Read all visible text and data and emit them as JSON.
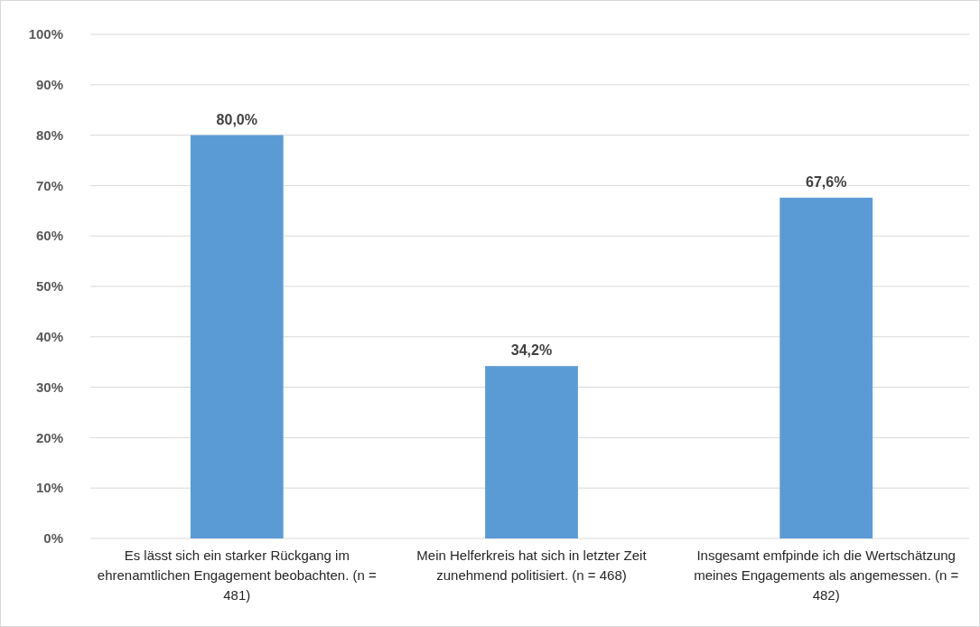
{
  "chart_data": {
    "type": "bar",
    "categories": [
      "Es lässt sich ein starker Rückgang im ehrenamtlichen Engagement beobachten. (n = 481)",
      "Mein Helferkreis hat sich in letzter Zeit zunehmend politisiert. (n = 468)",
      "Insgesamt emfpinde ich die Wertschätzung meines Engagements als angemessen. (n = 482)"
    ],
    "values": [
      80.0,
      34.2,
      67.6
    ],
    "value_labels": [
      "80,0%",
      "34,2%",
      "67,6%"
    ],
    "color": "#5b9bd5",
    "ylim": [
      0,
      100
    ],
    "yticks": [
      {
        "value": 0,
        "label": "0%"
      },
      {
        "value": 10,
        "label": "10%"
      },
      {
        "value": 20,
        "label": "20%"
      },
      {
        "value": 30,
        "label": "30%"
      },
      {
        "value": 40,
        "label": "40%"
      },
      {
        "value": 50,
        "label": "50%"
      },
      {
        "value": 60,
        "label": "60%"
      },
      {
        "value": 70,
        "label": "70%"
      },
      {
        "value": 80,
        "label": "80%"
      },
      {
        "value": 90,
        "label": "90%"
      },
      {
        "value": 100,
        "label": "100%"
      }
    ],
    "grid": "y"
  }
}
